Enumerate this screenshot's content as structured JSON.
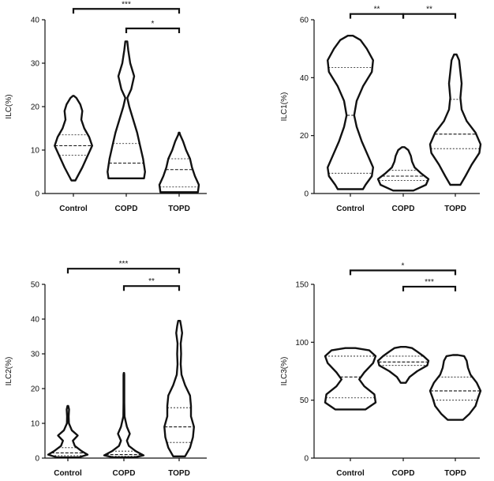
{
  "chart_data": [
    {
      "type": "violin",
      "ylabel": "ILC(%)",
      "categories": [
        "Control",
        "COPD",
        "TOPD"
      ],
      "ylim": [
        0,
        40
      ],
      "yticks": [
        0,
        10,
        20,
        30,
        40
      ],
      "violins": [
        {
          "profile": [
            [
              3,
              0.1
            ],
            [
              6,
              0.45
            ],
            [
              9,
              0.75
            ],
            [
              11,
              0.95
            ],
            [
              13,
              0.8
            ],
            [
              15,
              0.55
            ],
            [
              17,
              0.4
            ],
            [
              19,
              0.45
            ],
            [
              20.5,
              0.35
            ],
            [
              22,
              0.15
            ],
            [
              22.5,
              0.02
            ]
          ],
          "quartiles": [
            8.8,
            11,
            13.5
          ]
        },
        {
          "profile": [
            [
              3.5,
              0.9
            ],
            [
              5,
              0.95
            ],
            [
              8,
              0.85
            ],
            [
              11,
              0.7
            ],
            [
              14,
              0.55
            ],
            [
              17,
              0.35
            ],
            [
              20,
              0.15
            ],
            [
              22,
              0.05
            ],
            [
              24,
              0.25
            ],
            [
              27,
              0.4
            ],
            [
              30,
              0.2
            ],
            [
              33,
              0.1
            ],
            [
              35,
              0.05
            ]
          ],
          "quartiles": [
            3.5,
            7,
            11.5
          ]
        },
        {
          "profile": [
            [
              0.3,
              0.95
            ],
            [
              2,
              1.0
            ],
            [
              4,
              0.8
            ],
            [
              6,
              0.65
            ],
            [
              8,
              0.55
            ],
            [
              10,
              0.35
            ],
            [
              12,
              0.2
            ],
            [
              13.5,
              0.05
            ],
            [
              14,
              0.02
            ]
          ],
          "quartiles": [
            1.5,
            5.5,
            8
          ]
        }
      ],
      "significance": [
        {
          "from": 0,
          "to": 2,
          "label": "***",
          "y": 42.5
        },
        {
          "from": 1,
          "to": 2,
          "label": "*",
          "y": 38
        }
      ]
    },
    {
      "type": "violin",
      "ylabel": "ILC1(%)",
      "categories": [
        "Control",
        "COPD",
        "TOPD"
      ],
      "ylim": [
        0,
        60
      ],
      "yticks": [
        0,
        20,
        40,
        60
      ],
      "violins": [
        {
          "profile": [
            [
              1.5,
              0.5
            ],
            [
              3,
              0.6
            ],
            [
              6,
              0.85
            ],
            [
              9,
              0.9
            ],
            [
              13,
              0.7
            ],
            [
              18,
              0.45
            ],
            [
              23,
              0.25
            ],
            [
              27,
              0.15
            ],
            [
              32,
              0.25
            ],
            [
              37,
              0.5
            ],
            [
              42,
              0.85
            ],
            [
              46,
              0.9
            ],
            [
              50,
              0.65
            ],
            [
              53,
              0.4
            ],
            [
              54.5,
              0.1
            ]
          ],
          "quartiles": [
            7,
            27,
            43.5
          ]
        },
        {
          "profile": [
            [
              1,
              0.4
            ],
            [
              3,
              0.9
            ],
            [
              5,
              1.0
            ],
            [
              7,
              0.7
            ],
            [
              9,
              0.45
            ],
            [
              11,
              0.35
            ],
            [
              13,
              0.3
            ],
            [
              15,
              0.2
            ],
            [
              16,
              0.05
            ]
          ],
          "quartiles": [
            4.5,
            6,
            8
          ]
        },
        {
          "profile": [
            [
              3,
              0.2
            ],
            [
              6,
              0.4
            ],
            [
              10,
              0.65
            ],
            [
              14,
              0.95
            ],
            [
              17,
              1.0
            ],
            [
              21,
              0.8
            ],
            [
              25,
              0.45
            ],
            [
              29,
              0.25
            ],
            [
              33,
              0.2
            ],
            [
              38,
              0.25
            ],
            [
              42,
              0.2
            ],
            [
              46,
              0.15
            ],
            [
              48,
              0.05
            ]
          ],
          "quartiles": [
            15.5,
            20.5,
            32.5
          ]
        }
      ],
      "significance": [
        {
          "from": 0,
          "to": 1,
          "label": "**",
          "y": 62
        },
        {
          "from": 1,
          "to": 2,
          "label": "**",
          "y": 62
        }
      ]
    },
    {
      "type": "violin",
      "ylabel": "ILC2(%)",
      "categories": [
        "Control",
        "COPD",
        "TOPD"
      ],
      "ylim": [
        0,
        50
      ],
      "yticks": [
        0,
        10,
        20,
        30,
        40,
        50
      ],
      "violins": [
        {
          "profile": [
            [
              0.2,
              0.55
            ],
            [
              1,
              1.0
            ],
            [
              2,
              0.7
            ],
            [
              3.5,
              0.35
            ],
            [
              5,
              0.25
            ],
            [
              6.5,
              0.5
            ],
            [
              8,
              0.2
            ],
            [
              10,
              0.05
            ],
            [
              12,
              0.04
            ],
            [
              14,
              0.06
            ],
            [
              15,
              0.02
            ]
          ],
          "quartiles": [
            0.7,
            1.5,
            3
          ]
        },
        {
          "profile": [
            [
              0.2,
              0.55
            ],
            [
              0.8,
              1.0
            ],
            [
              2,
              0.6
            ],
            [
              3.5,
              0.25
            ],
            [
              5,
              0.15
            ],
            [
              7,
              0.3
            ],
            [
              9,
              0.15
            ],
            [
              12,
              0.03
            ],
            [
              16,
              0.02
            ],
            [
              20,
              0.02
            ],
            [
              24,
              0.02
            ],
            [
              24.5,
              0.01
            ]
          ],
          "quartiles": [
            0.5,
            1,
            2
          ]
        },
        {
          "profile": [
            [
              0.5,
              0.3
            ],
            [
              3,
              0.55
            ],
            [
              6,
              0.7
            ],
            [
              9,
              0.75
            ],
            [
              12,
              0.6
            ],
            [
              15,
              0.6
            ],
            [
              18,
              0.55
            ],
            [
              21,
              0.3
            ],
            [
              24,
              0.12
            ],
            [
              27,
              0.08
            ],
            [
              30,
              0.1
            ],
            [
              33,
              0.08
            ],
            [
              36,
              0.15
            ],
            [
              38,
              0.1
            ],
            [
              39.5,
              0.05
            ]
          ],
          "quartiles": [
            4.5,
            9,
            14.5
          ]
        }
      ],
      "significance": [
        {
          "from": 0,
          "to": 2,
          "label": "***",
          "y": 54.5
        },
        {
          "from": 1,
          "to": 2,
          "label": "**",
          "y": 49.5
        }
      ]
    },
    {
      "type": "violin",
      "ylabel": "ILC3(%)",
      "categories": [
        "Control",
        "COPD",
        "TOPD"
      ],
      "ylim": [
        0,
        150
      ],
      "yticks": [
        0,
        50,
        100,
        150
      ],
      "violins": [
        {
          "profile": [
            [
              42,
              0.6
            ],
            [
              48,
              1.0
            ],
            [
              55,
              0.95
            ],
            [
              62,
              0.55
            ],
            [
              68,
              0.35
            ],
            [
              74,
              0.55
            ],
            [
              82,
              0.9
            ],
            [
              88,
              1.0
            ],
            [
              93,
              0.75
            ],
            [
              95,
              0.2
            ]
          ],
          "quartiles": [
            52,
            70,
            88
          ]
        },
        {
          "profile": [
            [
              65,
              0.1
            ],
            [
              70,
              0.25
            ],
            [
              75,
              0.55
            ],
            [
              80,
              0.95
            ],
            [
              84,
              1.0
            ],
            [
              88,
              0.8
            ],
            [
              92,
              0.55
            ],
            [
              95,
              0.35
            ],
            [
              96,
              0.1
            ]
          ],
          "quartiles": [
            80,
            83,
            88
          ]
        },
        {
          "profile": [
            [
              33,
              0.3
            ],
            [
              38,
              0.55
            ],
            [
              45,
              0.8
            ],
            [
              52,
              0.9
            ],
            [
              58,
              1.0
            ],
            [
              65,
              0.85
            ],
            [
              72,
              0.6
            ],
            [
              78,
              0.5
            ],
            [
              84,
              0.45
            ],
            [
              88,
              0.35
            ],
            [
              89,
              0.1
            ]
          ],
          "quartiles": [
            50,
            58,
            70
          ]
        }
      ],
      "significance": [
        {
          "from": 0,
          "to": 2,
          "label": "*",
          "y": 162
        },
        {
          "from": 1,
          "to": 2,
          "label": "***",
          "y": 148
        }
      ]
    }
  ]
}
